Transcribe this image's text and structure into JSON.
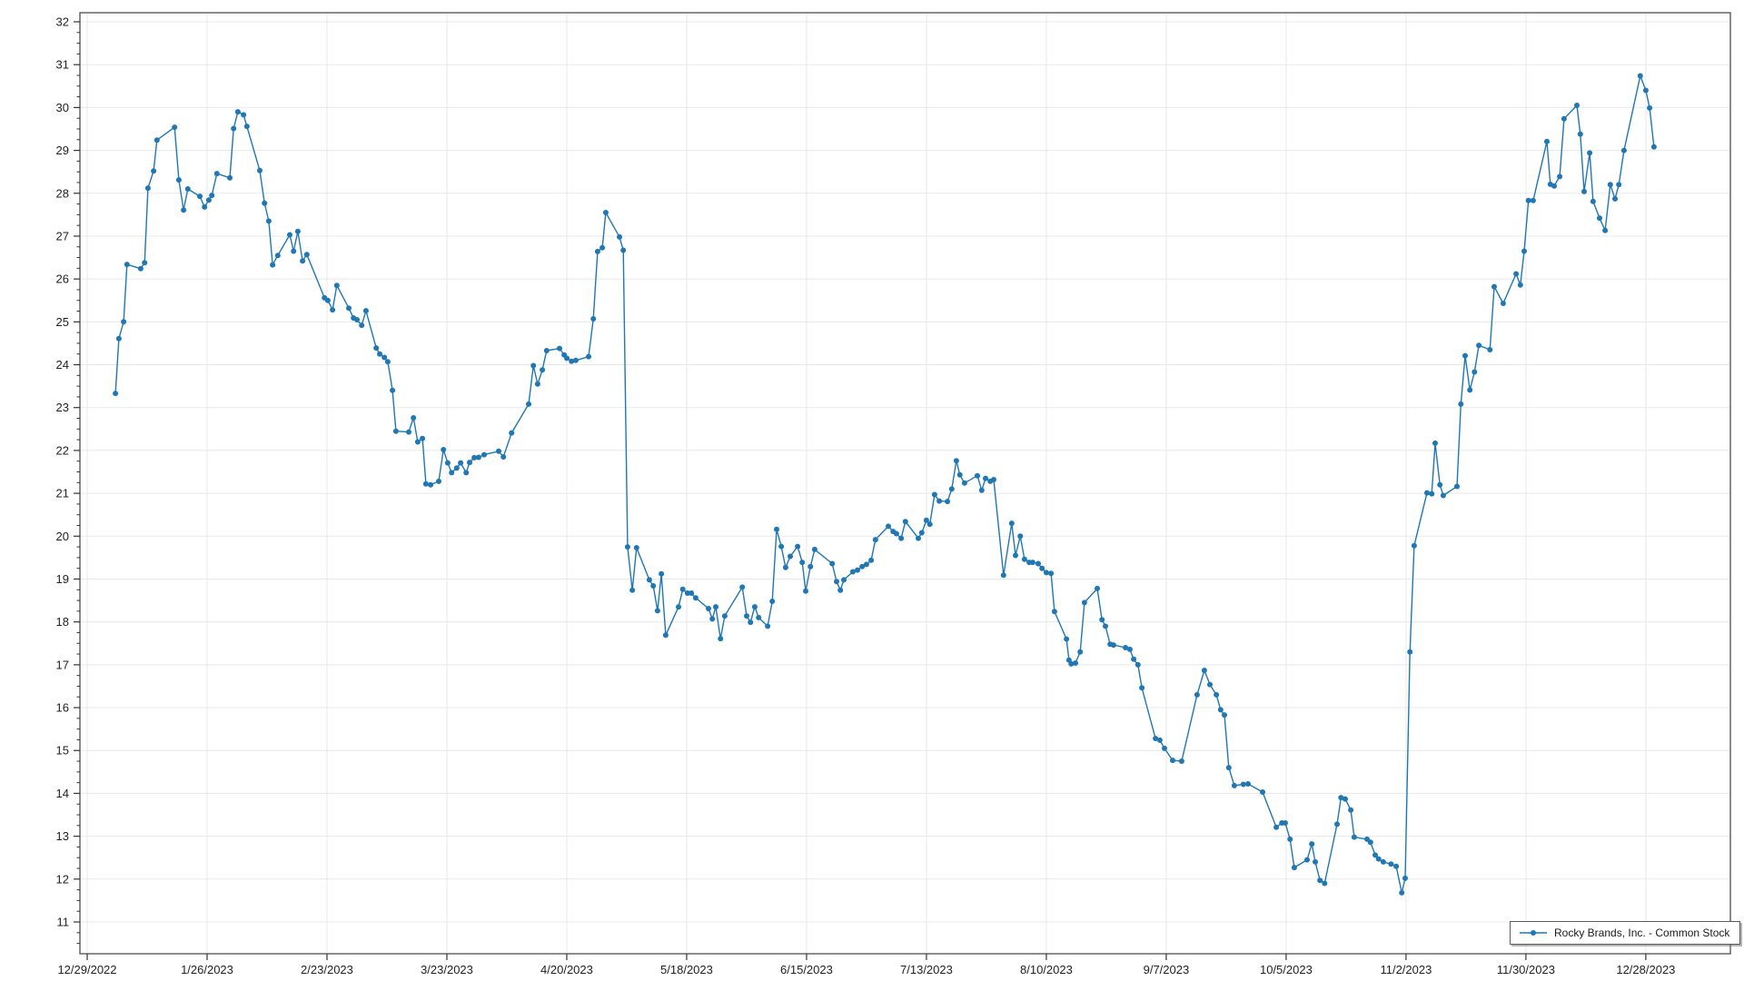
{
  "window": {
    "background": "#ffffff"
  },
  "legend": {
    "series_label": "Rocky Brands, Inc. - Common Stock"
  },
  "chart_data": {
    "type": "line",
    "title": "",
    "xlabel": "",
    "ylabel": "",
    "grid": true,
    "legend_position": "bottom-right",
    "y_axis": {
      "min": 11,
      "max": 32,
      "tick_step": 1,
      "minor_tick_step": 0.25
    },
    "x_axis": {
      "kind": "date",
      "start_date": "12/29/2022",
      "point_x_units": "calendar days since 12/29/2022",
      "tick_interval_days": 28,
      "tick_labels": [
        "12/29/2022",
        "1/26/2023",
        "2/23/2023",
        "3/23/2023",
        "4/20/2023",
        "5/18/2023",
        "6/15/2023",
        "7/13/2023",
        "8/10/2023",
        "9/7/2023",
        "10/5/2023",
        "11/2/2023",
        "11/30/2023",
        "12/28/2023"
      ]
    },
    "series": [
      {
        "name": "Rocky Brands, Inc. - Common Stock",
        "color": "#1f77b4",
        "marker": "circle",
        "points": [
          [
            6.6,
            23.33
          ],
          [
            7.4,
            24.61
          ],
          [
            8.5,
            25.0
          ],
          [
            9.3,
            26.34
          ],
          [
            12.5,
            26.24
          ],
          [
            13.4,
            26.38
          ],
          [
            14.2,
            28.12
          ],
          [
            15.5,
            28.52
          ],
          [
            16.3,
            29.24
          ],
          [
            20.4,
            29.54
          ],
          [
            21.4,
            28.31
          ],
          [
            22.5,
            27.61
          ],
          [
            23.5,
            28.1
          ],
          [
            26.3,
            27.93
          ],
          [
            27.4,
            27.68
          ],
          [
            28.4,
            27.84
          ],
          [
            29.1,
            27.95
          ],
          [
            30.3,
            28.46
          ],
          [
            33.3,
            28.36
          ],
          [
            34.2,
            29.51
          ],
          [
            35.2,
            29.9
          ],
          [
            36.5,
            29.83
          ],
          [
            37.3,
            29.56
          ],
          [
            40.3,
            28.53
          ],
          [
            41.4,
            27.77
          ],
          [
            42.4,
            27.35
          ],
          [
            43.3,
            26.33
          ],
          [
            44.5,
            26.55
          ],
          [
            47.3,
            27.03
          ],
          [
            48.2,
            26.65
          ],
          [
            49.2,
            27.11
          ],
          [
            50.3,
            26.42
          ],
          [
            51.3,
            26.57
          ],
          [
            55.4,
            25.56
          ],
          [
            56.2,
            25.5
          ],
          [
            57.3,
            25.28
          ],
          [
            58.3,
            25.85
          ],
          [
            61.1,
            25.32
          ],
          [
            62.2,
            25.09
          ],
          [
            63.0,
            25.05
          ],
          [
            64.1,
            24.92
          ],
          [
            65.1,
            25.26
          ],
          [
            67.5,
            24.39
          ],
          [
            68.3,
            24.25
          ],
          [
            69.4,
            24.17
          ],
          [
            70.2,
            24.07
          ],
          [
            71.3,
            23.4
          ],
          [
            72.1,
            22.45
          ],
          [
            75.1,
            22.43
          ],
          [
            76.2,
            22.76
          ],
          [
            77.2,
            22.2
          ],
          [
            78.3,
            22.28
          ],
          [
            79.1,
            21.22
          ],
          [
            80.2,
            21.2
          ],
          [
            82.1,
            21.28
          ],
          [
            83.2,
            22.02
          ],
          [
            84.2,
            21.71
          ],
          [
            85.1,
            21.48
          ],
          [
            86.3,
            21.59
          ],
          [
            87.2,
            21.71
          ],
          [
            88.5,
            21.48
          ],
          [
            89.3,
            21.72
          ],
          [
            90.4,
            21.83
          ],
          [
            91.4,
            21.84
          ],
          [
            92.7,
            21.9
          ],
          [
            96.1,
            21.98
          ],
          [
            97.2,
            21.85
          ],
          [
            99.1,
            22.41
          ],
          [
            103.1,
            23.08
          ],
          [
            104.2,
            23.98
          ],
          [
            105.2,
            23.55
          ],
          [
            106.3,
            23.88
          ],
          [
            107.3,
            24.33
          ],
          [
            110.3,
            24.38
          ],
          [
            111.4,
            24.23
          ],
          [
            112.0,
            24.15
          ],
          [
            113.1,
            24.08
          ],
          [
            114.1,
            24.1
          ],
          [
            117.1,
            24.19
          ],
          [
            118.2,
            25.07
          ],
          [
            119.2,
            26.64
          ],
          [
            120.3,
            26.73
          ],
          [
            121.1,
            27.55
          ],
          [
            124.3,
            26.98
          ],
          [
            125.2,
            26.67
          ],
          [
            126.2,
            19.75
          ],
          [
            127.3,
            18.74
          ],
          [
            128.3,
            19.73
          ],
          [
            131.3,
            18.98
          ],
          [
            132.2,
            18.84
          ],
          [
            133.2,
            18.26
          ],
          [
            134.1,
            19.12
          ],
          [
            135.1,
            17.69
          ],
          [
            138.1,
            18.35
          ],
          [
            139.1,
            18.76
          ],
          [
            140.2,
            18.67
          ],
          [
            141.1,
            18.67
          ],
          [
            142.1,
            18.56
          ],
          [
            145.1,
            18.31
          ],
          [
            146.0,
            18.07
          ],
          [
            146.8,
            18.35
          ],
          [
            147.9,
            17.61
          ],
          [
            148.9,
            18.14
          ],
          [
            153.0,
            18.81
          ],
          [
            154.0,
            18.14
          ],
          [
            154.9,
            17.99
          ],
          [
            155.9,
            18.35
          ],
          [
            156.8,
            18.1
          ],
          [
            158.9,
            17.9
          ],
          [
            160.0,
            18.48
          ],
          [
            161.0,
            20.16
          ],
          [
            162.1,
            19.76
          ],
          [
            163.1,
            19.27
          ],
          [
            164.2,
            19.53
          ],
          [
            165.9,
            19.76
          ],
          [
            167.0,
            19.39
          ],
          [
            167.8,
            18.72
          ],
          [
            168.9,
            19.29
          ],
          [
            169.9,
            19.69
          ],
          [
            174.0,
            19.36
          ],
          [
            175.0,
            18.94
          ],
          [
            175.9,
            18.74
          ],
          [
            176.7,
            18.98
          ],
          [
            178.8,
            19.17
          ],
          [
            179.9,
            19.21
          ],
          [
            181.0,
            19.29
          ],
          [
            182.0,
            19.34
          ],
          [
            183.1,
            19.44
          ],
          [
            184.1,
            19.92
          ],
          [
            187.1,
            20.23
          ],
          [
            188.2,
            20.11
          ],
          [
            189.0,
            20.06
          ],
          [
            190.1,
            19.95
          ],
          [
            191.1,
            20.34
          ],
          [
            194.1,
            19.95
          ],
          [
            194.9,
            20.08
          ],
          [
            196.0,
            20.37
          ],
          [
            196.8,
            20.28
          ],
          [
            197.9,
            20.97
          ],
          [
            199.0,
            20.82
          ],
          [
            200.9,
            20.81
          ],
          [
            201.9,
            21.1
          ],
          [
            203.0,
            21.76
          ],
          [
            203.8,
            21.43
          ],
          [
            204.9,
            21.24
          ],
          [
            207.9,
            21.41
          ],
          [
            208.9,
            21.07
          ],
          [
            209.8,
            21.35
          ],
          [
            210.9,
            21.28
          ],
          [
            211.7,
            21.32
          ],
          [
            214.0,
            19.09
          ],
          [
            215.9,
            20.3
          ],
          [
            216.8,
            19.55
          ],
          [
            217.9,
            20.0
          ],
          [
            218.9,
            19.46
          ],
          [
            220.0,
            19.39
          ],
          [
            220.8,
            19.39
          ],
          [
            222.1,
            19.36
          ],
          [
            223.0,
            19.25
          ],
          [
            224.0,
            19.15
          ],
          [
            225.1,
            19.13
          ],
          [
            225.9,
            18.24
          ],
          [
            228.7,
            17.6
          ],
          [
            229.3,
            17.11
          ],
          [
            229.8,
            17.02
          ],
          [
            230.8,
            17.04
          ],
          [
            231.9,
            17.3
          ],
          [
            232.9,
            18.45
          ],
          [
            235.9,
            18.78
          ],
          [
            237.0,
            18.05
          ],
          [
            237.8,
            17.9
          ],
          [
            238.9,
            17.48
          ],
          [
            239.7,
            17.46
          ],
          [
            242.5,
            17.4
          ],
          [
            243.5,
            17.36
          ],
          [
            244.4,
            17.13
          ],
          [
            245.4,
            17.0
          ],
          [
            246.3,
            16.46
          ],
          [
            249.5,
            15.28
          ],
          [
            250.5,
            15.24
          ],
          [
            251.6,
            15.05
          ],
          [
            253.5,
            14.77
          ],
          [
            255.6,
            14.75
          ],
          [
            259.2,
            16.3
          ],
          [
            260.9,
            16.87
          ],
          [
            262.2,
            16.54
          ],
          [
            263.7,
            16.3
          ],
          [
            264.7,
            15.95
          ],
          [
            265.6,
            15.83
          ],
          [
            266.6,
            14.6
          ],
          [
            267.9,
            14.18
          ],
          [
            270.0,
            14.21
          ],
          [
            271.1,
            14.22
          ],
          [
            274.5,
            14.03
          ],
          [
            277.7,
            13.21
          ],
          [
            279.0,
            13.31
          ],
          [
            279.8,
            13.31
          ],
          [
            280.9,
            12.93
          ],
          [
            281.9,
            12.27
          ],
          [
            284.9,
            12.45
          ],
          [
            286.0,
            12.82
          ],
          [
            286.8,
            12.4
          ],
          [
            287.9,
            11.97
          ],
          [
            289.0,
            11.9
          ],
          [
            291.9,
            13.28
          ],
          [
            292.8,
            13.9
          ],
          [
            293.8,
            13.87
          ],
          [
            295.1,
            13.61
          ],
          [
            295.9,
            12.98
          ],
          [
            298.9,
            12.93
          ],
          [
            299.7,
            12.86
          ],
          [
            300.8,
            12.56
          ],
          [
            301.6,
            12.47
          ],
          [
            302.7,
            12.4
          ],
          [
            304.5,
            12.35
          ],
          [
            305.7,
            12.3
          ],
          [
            307.0,
            11.68
          ],
          [
            307.8,
            12.02
          ],
          [
            308.9,
            17.3
          ],
          [
            309.9,
            19.78
          ],
          [
            312.9,
            21.01
          ],
          [
            314.0,
            20.99
          ],
          [
            314.8,
            22.17
          ],
          [
            315.9,
            21.2
          ],
          [
            316.7,
            20.95
          ],
          [
            319.9,
            21.16
          ],
          [
            320.8,
            23.08
          ],
          [
            321.8,
            24.21
          ],
          [
            322.9,
            23.41
          ],
          [
            324.0,
            23.83
          ],
          [
            325.0,
            24.45
          ],
          [
            327.6,
            24.35
          ],
          [
            328.6,
            25.82
          ],
          [
            330.7,
            25.43
          ],
          [
            333.7,
            26.12
          ],
          [
            334.7,
            25.86
          ],
          [
            335.6,
            26.65
          ],
          [
            336.6,
            27.83
          ],
          [
            337.7,
            27.83
          ],
          [
            340.9,
            29.21
          ],
          [
            341.7,
            28.21
          ],
          [
            342.6,
            28.17
          ],
          [
            343.9,
            28.39
          ],
          [
            344.9,
            29.74
          ],
          [
            347.9,
            30.05
          ],
          [
            348.7,
            29.38
          ],
          [
            349.6,
            28.04
          ],
          [
            350.9,
            28.94
          ],
          [
            351.7,
            27.81
          ],
          [
            353.2,
            27.42
          ],
          [
            354.5,
            27.13
          ],
          [
            355.7,
            28.2
          ],
          [
            356.8,
            27.87
          ],
          [
            357.7,
            28.2
          ],
          [
            358.9,
            29.0
          ],
          [
            362.7,
            30.74
          ],
          [
            364.0,
            30.4
          ],
          [
            364.9,
            29.99
          ],
          [
            365.9,
            29.08
          ]
        ]
      }
    ],
    "colors": {
      "line": "#1f77b4",
      "grid": "#e8e8e8",
      "frame": "#4d4d4d",
      "tick": "#333333",
      "label": "#222222"
    }
  }
}
